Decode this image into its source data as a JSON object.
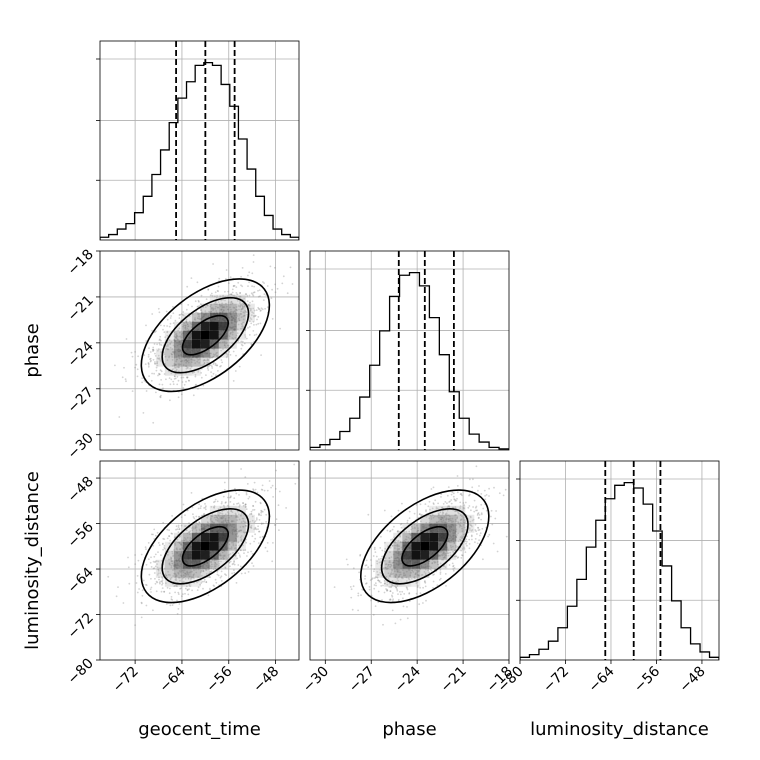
{
  "chart_data": {
    "type": "corner",
    "parameters": [
      {
        "label": "geocent_time",
        "range": [
          -78,
          -44
        ],
        "ticks": [
          -72,
          -64,
          -56,
          -48
        ],
        "tick_labels": [
          "−72",
          "−64",
          "−56",
          "−48"
        ],
        "median": -60.0,
        "lo": -65.0,
        "hi": -55.0
      },
      {
        "label": "phase",
        "range": [
          -31,
          -18
        ],
        "ticks": [
          -30,
          -27,
          -24,
          -21,
          -18
        ],
        "tick_labels": [
          "−30",
          "−27",
          "−24",
          "−21",
          "−18"
        ],
        "median": -23.5,
        "lo": -25.2,
        "hi": -21.6
      },
      {
        "label": "luminosity_distance",
        "range": [
          -80,
          -45
        ],
        "ticks": [
          -80,
          -72,
          -64,
          -56,
          -48
        ],
        "tick_labels": [
          "−80",
          "−72",
          "−64",
          "−56",
          "−48"
        ],
        "median": -60.0,
        "lo": -65.0,
        "hi": -55.3
      }
    ],
    "histograms": [
      {
        "counts": [
          1,
          2,
          4,
          6,
          10,
          16,
          24,
          33,
          43,
          52,
          58,
          64,
          65,
          64,
          57,
          49,
          37,
          26,
          16,
          9,
          4,
          2,
          1
        ]
      },
      {
        "counts": [
          1,
          2,
          4,
          7,
          12,
          20,
          32,
          45,
          58,
          66,
          67,
          62,
          50,
          36,
          22,
          12,
          6,
          3,
          1,
          0.4
        ]
      },
      {
        "counts": [
          1,
          2,
          4,
          7,
          12,
          20,
          30,
          42,
          52,
          60,
          65,
          66,
          64,
          58,
          48,
          35,
          22,
          12,
          6,
          3,
          1
        ]
      }
    ],
    "joint": [
      {
        "x_param": 0,
        "y_param": 1,
        "center": [
          -60.0,
          -23.5
        ],
        "extent": [
          17,
          9
        ]
      },
      {
        "x_param": 0,
        "y_param": 2,
        "center": [
          -60.0,
          -60.0
        ],
        "extent": [
          17,
          12
        ]
      },
      {
        "x_param": 1,
        "y_param": 2,
        "center": [
          -23.5,
          -60.0
        ],
        "extent": [
          9,
          12
        ]
      }
    ],
    "quantile_lines": "dashed",
    "grid": true,
    "colors": {
      "line": "#000000",
      "grid": "#b0b0b0",
      "scatter": "#808080"
    }
  }
}
